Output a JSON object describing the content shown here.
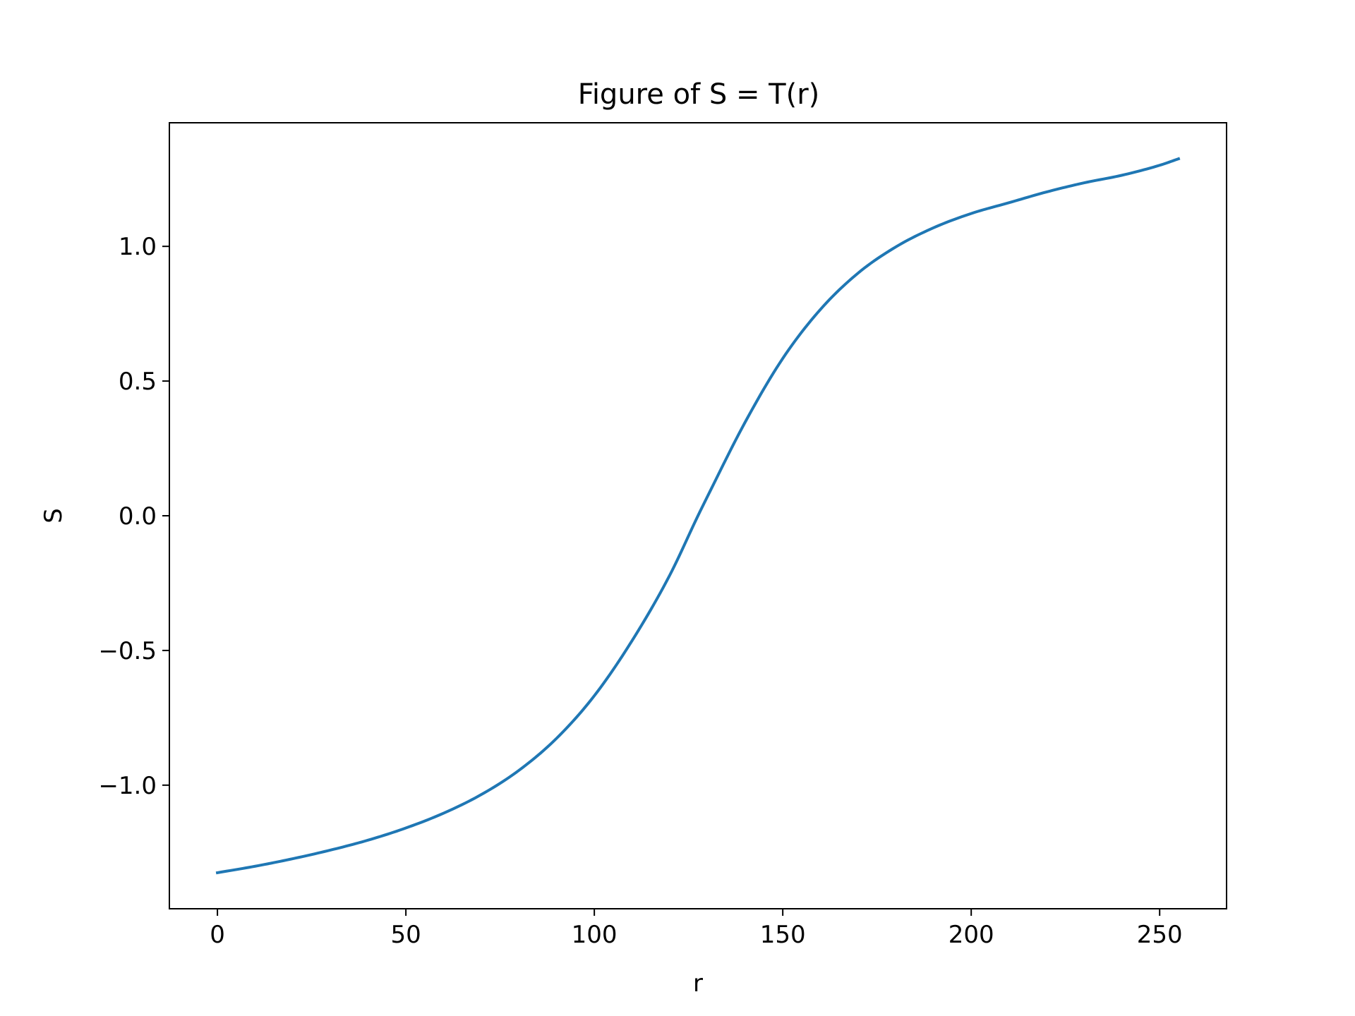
{
  "chart_data": {
    "type": "line",
    "title": "Figure of S = T(r)",
    "xlabel": "r",
    "ylabel": "S",
    "xlim": [
      -12.75,
      267.75
    ],
    "ylim": [
      -1.4588,
      1.4588
    ],
    "x_ticks": [
      {
        "value": 0,
        "label": "0"
      },
      {
        "value": 50,
        "label": "50"
      },
      {
        "value": 100,
        "label": "100"
      },
      {
        "value": 150,
        "label": "150"
      },
      {
        "value": 200,
        "label": "200"
      },
      {
        "value": 250,
        "label": "250"
      }
    ],
    "y_ticks": [
      {
        "value": -1.0,
        "label": "−1.0"
      },
      {
        "value": -0.5,
        "label": "−0.5"
      },
      {
        "value": 0.0,
        "label": "0.0"
      },
      {
        "value": 0.5,
        "label": "0.5"
      },
      {
        "value": 1.0,
        "label": "1.0"
      }
    ],
    "grid": false,
    "legend": "none",
    "series": [
      {
        "color": "#1f77b4",
        "x": [
          0,
          10,
          20,
          30,
          40,
          50,
          60,
          70,
          80,
          90,
          100,
          110,
          120,
          127.5,
          130,
          140,
          150,
          160,
          170,
          180,
          190,
          200,
          210,
          220,
          230,
          240,
          250,
          255
        ],
        "y": [
          -1.325,
          -1.301,
          -1.273,
          -1.241,
          -1.204,
          -1.159,
          -1.104,
          -1.035,
          -0.945,
          -0.826,
          -0.668,
          -0.464,
          -0.221,
          0.0,
          0.071,
          0.347,
          0.584,
          0.766,
          0.901,
          0.998,
          1.069,
          1.122,
          1.162,
          1.202,
          1.236,
          1.264,
          1.301,
          1.325
        ]
      }
    ]
  }
}
